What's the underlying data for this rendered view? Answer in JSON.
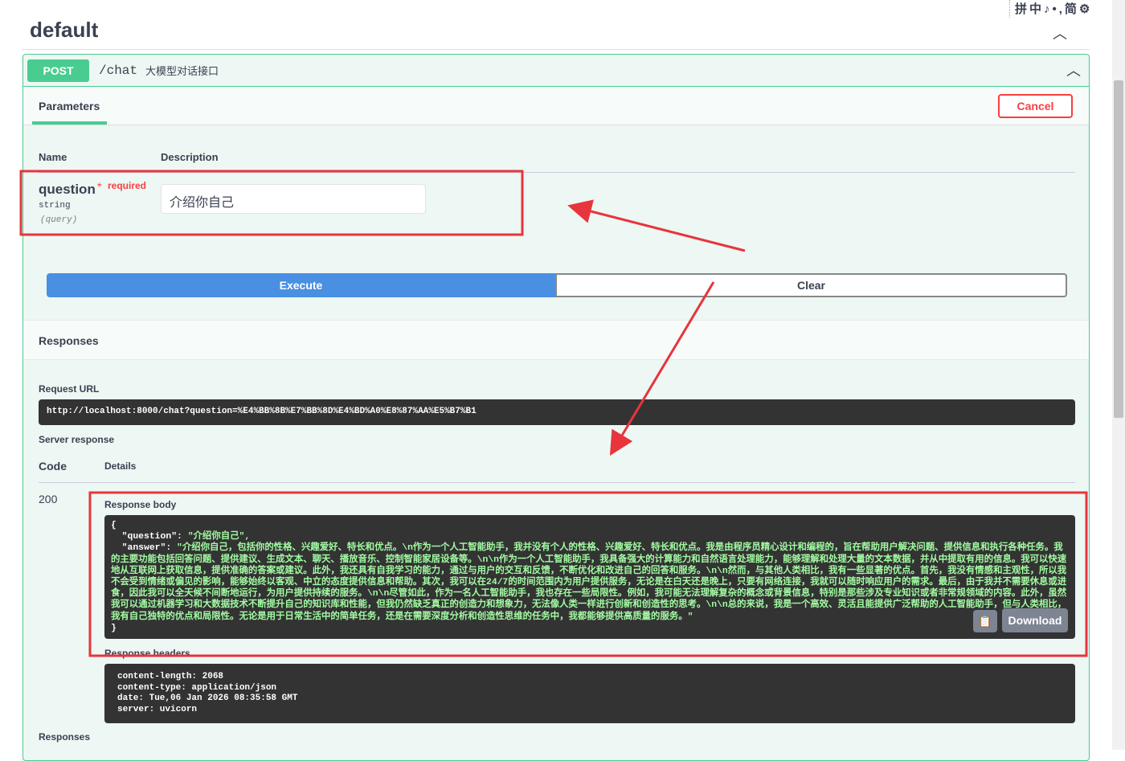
{
  "tag": {
    "title": "default"
  },
  "ime_toolbar": "拼中♪•,简⚙",
  "operation": {
    "method": "POST",
    "path": "/chat",
    "summary": "大模型对话接口"
  },
  "parameters": {
    "tab": "Parameters",
    "cancel": "Cancel",
    "col_name": "Name",
    "col_description": "Description",
    "param": {
      "name": "question",
      "required_star": "*",
      "required": "required",
      "type": "string",
      "in": "(query)",
      "value": "介绍你自己"
    }
  },
  "actions": {
    "execute": "Execute",
    "clear": "Clear"
  },
  "responses": {
    "title": "Responses",
    "request_url_label": "Request URL",
    "request_url": "http://localhost:8000/chat?question=%E4%BB%8B%E7%BB%8D%E4%BD%A0%E8%87%AA%E5%B7%B1",
    "server_response_label": "Server response",
    "col_code": "Code",
    "col_details": "Details",
    "code": "200",
    "body_label": "Response body",
    "body_open": "{",
    "body_question_key": "\"question\"",
    "body_question_value": "\"介绍你自己\",",
    "body_answer_key": "\"answer\"",
    "body_answer_value": "\"介绍你自己，包括你的性格、兴趣爱好、特长和优点。\\n作为一个人工智能助手，我并没有个人的性格、兴趣爱好、特长和优点。我是由程序员精心设计和编程的，旨在帮助用户解决问题、提供信息和执行各种任务。我的主要功能包括回答问题、提供建议、生成文本、聊天、播放音乐、控制智能家居设备等。\\n\\n作为一个人工智能助手，我具备强大的计算能力和自然语言处理能力，能够理解和处理大量的文本数据，并从中提取有用的信息。我可以快速地从互联网上获取信息，提供准确的答案或建议。此外，我还具有自我学习的能力，通过与用户的交互和反馈，不断优化和改进自己的回答和服务。\\n\\n然而，与其他人类相比，我有一些显著的优点。首先，我没有情感和主观性，所以我不会受到情绪或偏见的影响，能够始终以客观、中立的态度提供信息和帮助。其次，我可以在24/7的时间范围内为用户提供服务，无论是在白天还是晚上，只要有网络连接，我就可以随时响应用户的需求。最后，由于我并不需要休息或进食，因此我可以全天候不间断地运行，为用户提供持续的服务。\\n\\n尽管如此，作为一名人工智能助手，我也存在一些局限性。例如，我可能无法理解复杂的概念或背景信息，特别是那些涉及专业知识或者非常规领域的内容。此外，虽然我可以通过机器学习和大数据技术不断提升自己的知识库和性能，但我仍然缺乏真正的创造力和想象力，无法像人类一样进行创新和创造性的思考。\\n\\n总的来说，我是一个高效、灵活且能提供广泛帮助的人工智能助手，但与人类相比，我有自己独特的优点和局限性。无论是用于日常生活中的简单任务，还是在需要深度分析和创造性思维的任务中，我都能够提供高质量的服务。\"",
    "body_close": "}",
    "download": "Download",
    "headers_label": "Response headers",
    "headers": "content-length: 2068\ncontent-type: application/json\ndate: Tue,06 Jan 2026 08:35:58 GMT\nserver: uvicorn",
    "footer_label": "Responses"
  },
  "annotation_color": "#e8343c"
}
